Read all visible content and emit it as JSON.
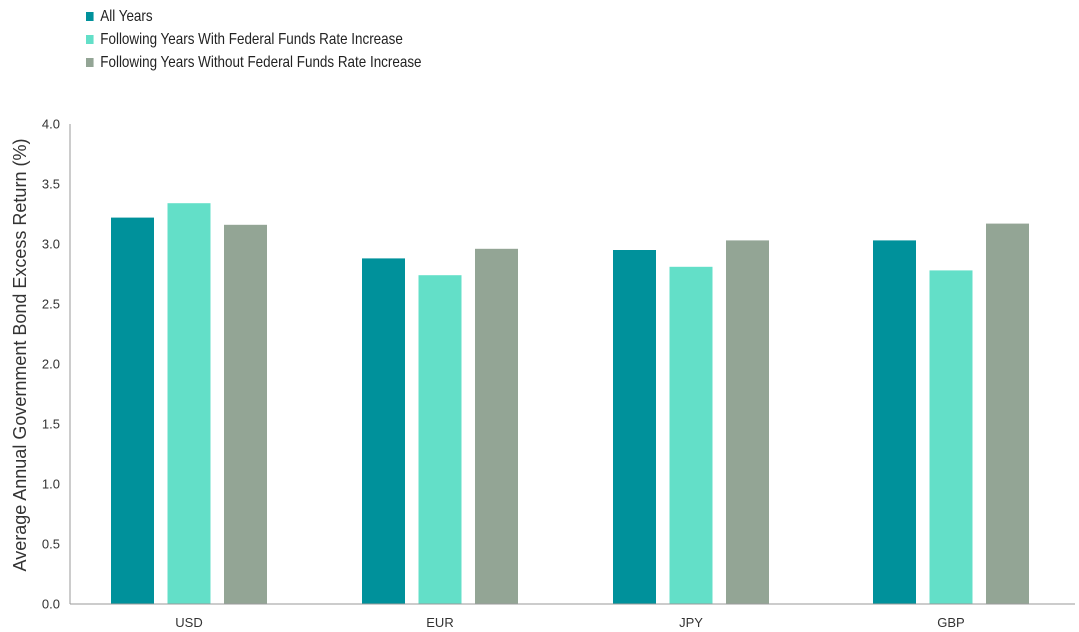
{
  "chart_data": {
    "type": "bar",
    "title": "",
    "xlabel": "",
    "ylabel": "Average Annual Government Bond Excess Return (%)",
    "ylim": [
      0,
      4.0
    ],
    "yticks": [
      "0.0",
      "0.5",
      "1.0",
      "1.5",
      "2.0",
      "2.5",
      "3.0",
      "3.5",
      "4.0"
    ],
    "grid": false,
    "legend_position": "top-left",
    "categories": [
      "USD",
      "EUR",
      "JPY",
      "GBP"
    ],
    "series": [
      {
        "name": "All Years",
        "color": "#00919B",
        "values": [
          3.22,
          2.88,
          2.95,
          3.03
        ]
      },
      {
        "name": "Following Years With Federal Funds Rate Increase",
        "color": "#63DFC8",
        "values": [
          3.34,
          2.74,
          2.81,
          2.78
        ]
      },
      {
        "name": "Following Years Without Federal Funds Rate Increase",
        "color": "#93A595",
        "values": [
          3.16,
          2.96,
          3.03,
          3.17
        ]
      }
    ]
  }
}
